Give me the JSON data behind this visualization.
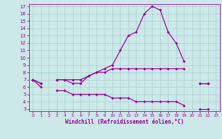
{
  "x": [
    0,
    1,
    2,
    3,
    4,
    5,
    6,
    7,
    8,
    9,
    10,
    11,
    12,
    13,
    14,
    15,
    16,
    17,
    18,
    19,
    20,
    21,
    22,
    23
  ],
  "line_upper": [
    7.0,
    6.5,
    null,
    7.0,
    7.0,
    6.5,
    6.5,
    7.5,
    8.0,
    8.5,
    9.0,
    11.0,
    13.0,
    13.5,
    16.0,
    17.0,
    16.5,
    13.5,
    12.0,
    9.5,
    null,
    6.5,
    6.5,
    null
  ],
  "line_mid": [
    7.0,
    6.5,
    null,
    7.0,
    7.0,
    7.0,
    7.0,
    7.5,
    8.0,
    8.0,
    8.5,
    8.5,
    8.5,
    8.5,
    8.5,
    8.5,
    8.5,
    8.5,
    8.5,
    8.5,
    null,
    6.5,
    6.5,
    null
  ],
  "line_low": [
    7.0,
    6.0,
    null,
    5.5,
    5.5,
    5.0,
    5.0,
    5.0,
    5.0,
    5.0,
    4.5,
    4.5,
    4.5,
    4.0,
    4.0,
    4.0,
    4.0,
    4.0,
    4.0,
    3.5,
    null,
    3.0,
    3.0,
    null
  ],
  "color": "#990099",
  "bg_color": "#cce8e8",
  "grid_color": "#aad0d0",
  "ylim_min": 3,
  "ylim_max": 17,
  "xlim_min": -0.5,
  "xlim_max": 23.5,
  "yticks": [
    3,
    4,
    5,
    6,
    7,
    8,
    9,
    10,
    11,
    12,
    13,
    14,
    15,
    16,
    17
  ],
  "xticks": [
    0,
    1,
    2,
    3,
    4,
    5,
    6,
    7,
    8,
    9,
    10,
    11,
    12,
    13,
    14,
    15,
    16,
    17,
    18,
    19,
    20,
    21,
    22,
    23
  ],
  "xlabel": "Windchill (Refroidissement éolien,°C)"
}
